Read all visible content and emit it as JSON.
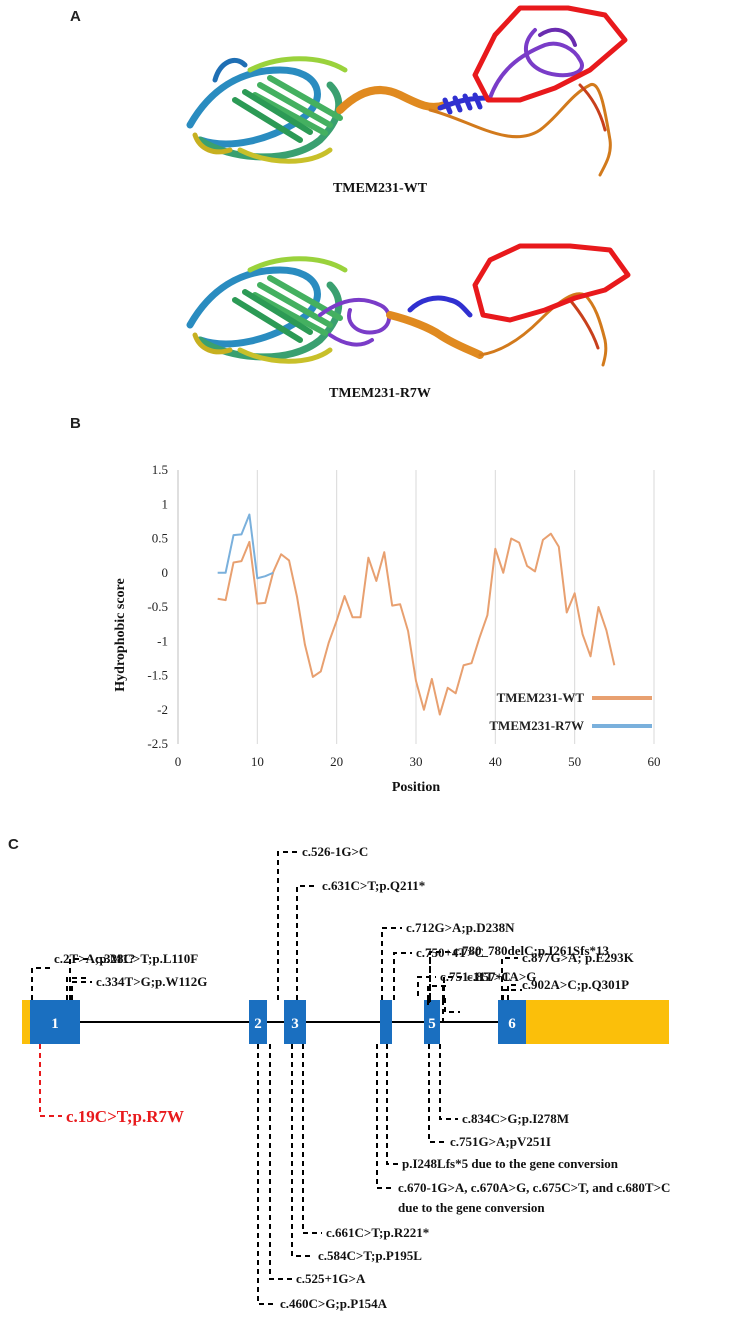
{
  "panels": {
    "a": {
      "letter": "A",
      "wt_caption": "TMEM231-WT",
      "mut_caption": "TMEM231-R7W"
    },
    "b": {
      "letter": "B"
    },
    "c": {
      "letter": "C"
    }
  },
  "chart_data": {
    "type": "line",
    "title": "",
    "xlabel": "Position",
    "ylabel": "Hydrophobic score",
    "xlim": [
      0,
      60
    ],
    "ylim": [
      -2.5,
      1.5
    ],
    "xticks": [
      "0",
      "10",
      "20",
      "30",
      "40",
      "50",
      "60"
    ],
    "yticks": [
      "1.5",
      "1",
      "0.5",
      "0",
      "-0.5",
      "-1",
      "-1.5",
      "-2",
      "-2.5"
    ],
    "grid": "vertical",
    "legend_position": "bottom-right",
    "series": [
      {
        "name": "TMEM231-WT",
        "color": "#e8a070",
        "x": [
          5,
          6,
          7,
          8,
          9,
          10,
          11,
          12,
          13,
          14,
          15,
          16,
          17,
          18,
          19,
          20,
          21,
          22,
          23,
          24,
          25,
          26,
          27,
          28,
          29,
          30,
          31,
          32,
          33,
          34,
          35,
          36,
          37,
          38,
          39,
          40,
          41,
          42,
          43,
          44,
          45,
          46,
          47,
          48,
          49,
          50,
          51,
          52,
          53,
          54,
          55
        ],
        "values": [
          -0.38,
          -0.4,
          0.15,
          0.17,
          0.45,
          -0.45,
          -0.44,
          0.01,
          0.27,
          0.18,
          -0.35,
          -1.05,
          -1.52,
          -1.44,
          -1.02,
          -0.7,
          -0.34,
          -0.65,
          -0.65,
          0.22,
          -0.12,
          0.3,
          -0.48,
          -0.46,
          -0.85,
          -1.58,
          -2.0,
          -1.55,
          -2.07,
          -1.68,
          -1.76,
          -1.35,
          -1.32,
          -0.95,
          -0.62,
          0.35,
          0.0,
          0.5,
          0.44,
          0.1,
          0.02,
          0.48,
          0.57,
          0.38,
          -0.58,
          -0.3,
          -0.9,
          -1.22,
          -0.5,
          -0.84,
          -1.35
        ]
      },
      {
        "name": "TMEM231-R7W",
        "color": "#7ab0dc",
        "x": [
          5,
          6,
          7,
          8,
          9,
          10,
          11,
          12
        ],
        "values": [
          0.0,
          0.0,
          0.55,
          0.56,
          0.85,
          -0.08,
          -0.05,
          0.0
        ]
      }
    ]
  },
  "gene": {
    "exons": [
      "1",
      "2",
      "3",
      "5",
      "6"
    ],
    "upper_labels": [
      "c.526-1G>C",
      "c.631C>T;p.Q211*",
      "c.712G>A;p.D238N",
      "c.750+4T>C",
      "c.751-11T>C",
      "c.780_780delC;p.I261Sfs*13",
      "c.857+1A>G",
      "c.2T>A;p.M1?",
      "c.328C>T;p.L110F",
      "c.877G>A; p.E293K",
      "c.334T>G;p.W112G",
      "c.902A>C;p.Q301P"
    ],
    "lower_labels": [
      "c.834C>G;p.I278M",
      "c.751G>A;pV251I",
      "p.I248Lfs*5 due to the gene conversion",
      "c.670-1G>A, c.670A>G, c.675C>T, and c.680T>C",
      "due to the gene conversion",
      "c.661C>T;p.R221*",
      "c.584C>T;p.P195L",
      "c.525+1G>A",
      "c.460C>G;p.P154A"
    ],
    "highlight_label": "c.19C>T;p.R7W",
    "colors": {
      "exon": "#1a6fc0",
      "utr": "#fbbf0a",
      "highlight": "#e8191c"
    }
  }
}
